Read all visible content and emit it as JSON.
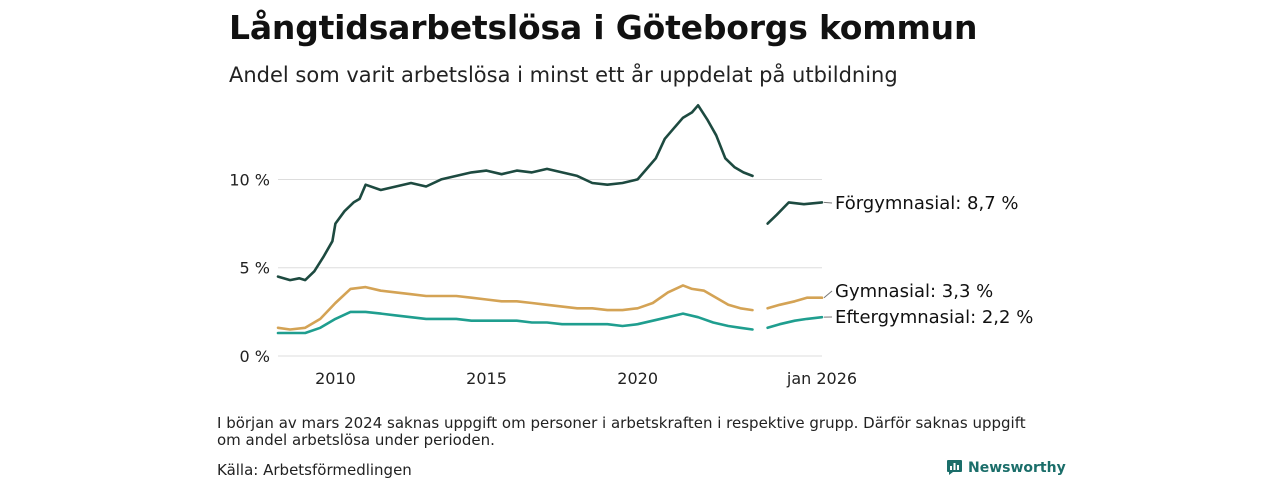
{
  "header": {
    "title": "Långtidsarbetslösa i Göteborgs kommun",
    "subtitle": "Andel som varit arbetslösa i minst ett år uppdelat på utbildning"
  },
  "footer": {
    "note": "I början av mars 2024 saknas uppgift om personer i arbetskraften i respektive grupp. Därför saknas uppgift om andel arbetslösa under perioden.",
    "source": "Källa: Arbetsförmedlingen",
    "brand": "Newsworthy"
  },
  "chart_data": {
    "type": "line",
    "title": "Långtidsarbetslösa i Göteborgs kommun",
    "subtitle": "Andel som varit arbetslösa i minst ett år uppdelat på utbildning",
    "xlabel": "",
    "ylabel": "",
    "xlim": [
      2008.1,
      2026.1
    ],
    "ylim": [
      0,
      14.5
    ],
    "grid": true,
    "yticks": [
      {
        "value": 0,
        "label": "0 %"
      },
      {
        "value": 5,
        "label": "5 %"
      },
      {
        "value": 10,
        "label": "10 %"
      }
    ],
    "xticks": [
      {
        "value": 2010,
        "label": "2010"
      },
      {
        "value": 2015,
        "label": "2015"
      },
      {
        "value": 2020,
        "label": "2020"
      },
      {
        "value": 2026.1,
        "label": "jan 2026"
      }
    ],
    "gap": [
      2023.9,
      2024.25
    ],
    "series": [
      {
        "name": "Förgymnasial",
        "label": "Förgymnasial: 8,7 %",
        "color": "#1d4a40",
        "x": [
          2008.1,
          2008.5,
          2008.8,
          2009.0,
          2009.3,
          2009.6,
          2009.9,
          2010.0,
          2010.3,
          2010.6,
          2010.8,
          2011.0,
          2011.5,
          2012.0,
          2012.5,
          2013.0,
          2013.5,
          2014.0,
          2014.5,
          2015.0,
          2015.5,
          2016.0,
          2016.5,
          2017.0,
          2017.5,
          2018.0,
          2018.5,
          2019.0,
          2019.5,
          2020.0,
          2020.3,
          2020.6,
          2020.9,
          2021.2,
          2021.5,
          2021.8,
          2022.0,
          2022.3,
          2022.6,
          2022.9,
          2023.2,
          2023.5,
          2023.8,
          2024.3,
          2024.6,
          2025.0,
          2025.5,
          2026.1
        ],
        "values": [
          4.5,
          4.3,
          4.4,
          4.3,
          4.8,
          5.6,
          6.5,
          7.5,
          8.2,
          8.7,
          8.9,
          9.7,
          9.4,
          9.6,
          9.8,
          9.6,
          10.0,
          10.2,
          10.4,
          10.5,
          10.3,
          10.5,
          10.4,
          10.6,
          10.4,
          10.2,
          9.8,
          9.7,
          9.8,
          10.0,
          10.6,
          11.2,
          12.3,
          12.9,
          13.5,
          13.8,
          14.2,
          13.4,
          12.5,
          11.2,
          10.7,
          10.4,
          10.2,
          7.5,
          8.0,
          8.7,
          8.6,
          8.7
        ]
      },
      {
        "name": "Gymnasial",
        "label": "Gymnasial: 3,3 %",
        "color": "#d4a355",
        "x": [
          2008.1,
          2008.5,
          2009.0,
          2009.5,
          2010.0,
          2010.5,
          2011.0,
          2011.5,
          2012.0,
          2012.5,
          2013.0,
          2013.5,
          2014.0,
          2014.5,
          2015.0,
          2015.5,
          2016.0,
          2016.5,
          2017.0,
          2017.5,
          2018.0,
          2018.5,
          2019.0,
          2019.5,
          2020.0,
          2020.5,
          2021.0,
          2021.5,
          2021.8,
          2022.2,
          2022.6,
          2023.0,
          2023.4,
          2023.8,
          2024.3,
          2024.7,
          2025.2,
          2025.6,
          2026.1
        ],
        "values": [
          1.6,
          1.5,
          1.6,
          2.1,
          3.0,
          3.8,
          3.9,
          3.7,
          3.6,
          3.5,
          3.4,
          3.4,
          3.4,
          3.3,
          3.2,
          3.1,
          3.1,
          3.0,
          2.9,
          2.8,
          2.7,
          2.7,
          2.6,
          2.6,
          2.7,
          3.0,
          3.6,
          4.0,
          3.8,
          3.7,
          3.3,
          2.9,
          2.7,
          2.6,
          2.7,
          2.9,
          3.1,
          3.3,
          3.3
        ]
      },
      {
        "name": "Eftergymnasial",
        "label": "Eftergymnasial: 2,2 %",
        "color": "#1f9e8f",
        "x": [
          2008.1,
          2008.5,
          2009.0,
          2009.5,
          2010.0,
          2010.5,
          2011.0,
          2011.5,
          2012.0,
          2012.5,
          2013.0,
          2013.5,
          2014.0,
          2014.5,
          2015.0,
          2015.5,
          2016.0,
          2016.5,
          2017.0,
          2017.5,
          2018.0,
          2018.5,
          2019.0,
          2019.5,
          2020.0,
          2020.5,
          2021.0,
          2021.5,
          2022.0,
          2022.5,
          2023.0,
          2023.4,
          2023.8,
          2024.3,
          2024.7,
          2025.2,
          2025.6,
          2026.1
        ],
        "values": [
          1.3,
          1.3,
          1.3,
          1.6,
          2.1,
          2.5,
          2.5,
          2.4,
          2.3,
          2.2,
          2.1,
          2.1,
          2.1,
          2.0,
          2.0,
          2.0,
          2.0,
          1.9,
          1.9,
          1.8,
          1.8,
          1.8,
          1.8,
          1.7,
          1.8,
          2.0,
          2.2,
          2.4,
          2.2,
          1.9,
          1.7,
          1.6,
          1.5,
          1.6,
          1.8,
          2.0,
          2.1,
          2.2
        ]
      }
    ]
  }
}
